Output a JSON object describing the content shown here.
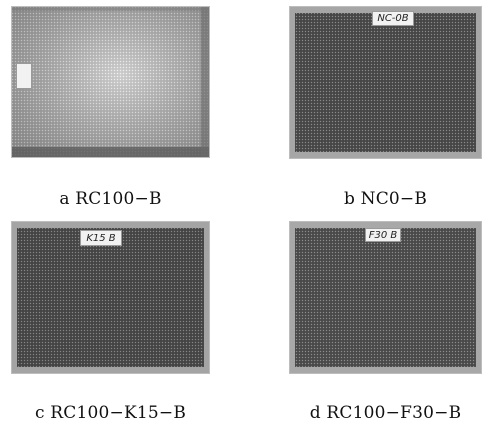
{
  "panels": [
    {
      "id": "a",
      "caption": "a RC100−B",
      "tag_text": "",
      "tone": "light"
    },
    {
      "id": "b",
      "caption": "b NC0−B",
      "tag_text": "NC-0B",
      "tone": "dark"
    },
    {
      "id": "c",
      "caption": "c RC100−K15−B",
      "tag_text": "K15 B",
      "tone": "dark"
    },
    {
      "id": "d",
      "caption": "d RC100−F30−B",
      "tag_text": "F30 B",
      "tone": "dark"
    }
  ]
}
